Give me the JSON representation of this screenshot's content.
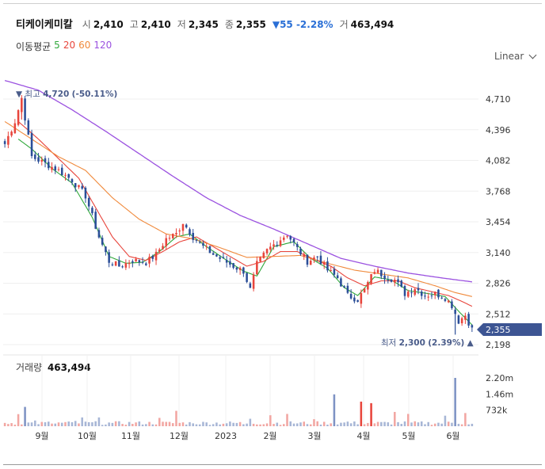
{
  "header": {
    "name": "티케이케미칼",
    "open_label": "시",
    "open": "2,410",
    "high_label": "고",
    "high": "2,410",
    "low_label": "저",
    "low": "2,345",
    "close_label": "종",
    "close": "2,355",
    "change_arrow": "▼",
    "change": "55",
    "change_pct": "-2.28%",
    "volume_label": "거",
    "volume": "463,494"
  },
  "moving_average": {
    "label": "이동평균",
    "periods": [
      {
        "label": "5",
        "color": "#2fa83a"
      },
      {
        "label": "20",
        "color": "#e8453c"
      },
      {
        "label": "60",
        "color": "#f08a3c"
      },
      {
        "label": "120",
        "color": "#9b52e0"
      }
    ]
  },
  "scale": {
    "label": "Linear"
  },
  "volume_panel": {
    "label": "거래량",
    "value": "463,494"
  },
  "annotations": {
    "max_arrow": "▼",
    "max_label": "최고",
    "max_value": "4,720",
    "max_pct": "(-50.11%)",
    "min_arrow": "▲",
    "min_label": "최저",
    "min_value": "2,300",
    "min_pct": "(2.39%)"
  },
  "last_price_tag": "2,355",
  "chart_data": {
    "type": "candlestick",
    "y_ticks": [
      "4,710",
      "4,396",
      "4,082",
      "3,768",
      "3,454",
      "3,140",
      "2,826",
      "2,512",
      "2,198"
    ],
    "y_tick_values": [
      4710,
      4396,
      4082,
      3768,
      3454,
      3140,
      2826,
      2512,
      2198
    ],
    "x_ticks": [
      "9월",
      "10월",
      "11월",
      "12월",
      "2023",
      "2월",
      "3월",
      "4월",
      "5월",
      "6월"
    ],
    "volume_ticks": [
      "2.20m",
      "1.46m",
      "732k"
    ],
    "volume_tick_values": [
      2200000,
      1460000,
      732000
    ],
    "ylim": [
      2198,
      4710
    ],
    "volume_lim": [
      0,
      2200000
    ],
    "up_color": "#e8453c",
    "down_color": "#2b4e98",
    "close_path": [
      [
        0,
        4250
      ],
      [
        3,
        4480
      ],
      [
        5,
        4720
      ],
      [
        8,
        4120
      ],
      [
        12,
        4050
      ],
      [
        16,
        3980
      ],
      [
        20,
        3880
      ],
      [
        24,
        3720
      ],
      [
        28,
        3300
      ],
      [
        31,
        3050
      ],
      [
        34,
        3000
      ],
      [
        38,
        3060
      ],
      [
        42,
        3040
      ],
      [
        45,
        3120
      ],
      [
        48,
        3280
      ],
      [
        51,
        3330
      ],
      [
        53,
        3450
      ],
      [
        56,
        3300
      ],
      [
        59,
        3200
      ],
      [
        62,
        3120
      ],
      [
        65,
        3060
      ],
      [
        68,
        3000
      ],
      [
        71,
        2950
      ],
      [
        73,
        2760
      ],
      [
        75,
        3020
      ],
      [
        78,
        3160
      ],
      [
        81,
        3250
      ],
      [
        84,
        3330
      ],
      [
        87,
        3180
      ],
      [
        90,
        3050
      ],
      [
        93,
        3100
      ],
      [
        96,
        2960
      ],
      [
        99,
        2880
      ],
      [
        102,
        2700
      ],
      [
        105,
        2660
      ],
      [
        107,
        2760
      ],
      [
        110,
        2960
      ],
      [
        113,
        2900
      ],
      [
        116,
        2860
      ],
      [
        119,
        2720
      ],
      [
        122,
        2780
      ],
      [
        125,
        2700
      ],
      [
        128,
        2720
      ],
      [
        131,
        2680
      ],
      [
        133,
        2600
      ],
      [
        135,
        2440
      ],
      [
        137,
        2500
      ],
      [
        139,
        2355
      ]
    ],
    "ma_paths": {
      "5": [
        [
          4,
          4300
        ],
        [
          8,
          4200
        ],
        [
          14,
          4000
        ],
        [
          20,
          3850
        ],
        [
          26,
          3500
        ],
        [
          31,
          3100
        ],
        [
          36,
          3030
        ],
        [
          41,
          3040
        ],
        [
          46,
          3150
        ],
        [
          51,
          3300
        ],
        [
          55,
          3330
        ],
        [
          60,
          3200
        ],
        [
          66,
          3060
        ],
        [
          71,
          2950
        ],
        [
          75,
          2900
        ],
        [
          80,
          3200
        ],
        [
          86,
          3250
        ],
        [
          91,
          3080
        ],
        [
          96,
          2980
        ],
        [
          101,
          2780
        ],
        [
          105,
          2700
        ],
        [
          110,
          2890
        ],
        [
          115,
          2860
        ],
        [
          120,
          2750
        ],
        [
          126,
          2720
        ],
        [
          131,
          2690
        ],
        [
          135,
          2540
        ],
        [
          139,
          2400
        ]
      ],
      "20": [
        [
          4,
          4480
        ],
        [
          10,
          4300
        ],
        [
          16,
          4100
        ],
        [
          22,
          3900
        ],
        [
          27,
          3600
        ],
        [
          32,
          3300
        ],
        [
          37,
          3100
        ],
        [
          42,
          3060
        ],
        [
          47,
          3150
        ],
        [
          52,
          3250
        ],
        [
          57,
          3300
        ],
        [
          62,
          3200
        ],
        [
          67,
          3100
        ],
        [
          72,
          3000
        ],
        [
          77,
          3050
        ],
        [
          82,
          3150
        ],
        [
          87,
          3150
        ],
        [
          92,
          3070
        ],
        [
          97,
          3000
        ],
        [
          102,
          2880
        ],
        [
          107,
          2800
        ],
        [
          112,
          2850
        ],
        [
          117,
          2850
        ],
        [
          122,
          2780
        ],
        [
          127,
          2740
        ],
        [
          132,
          2700
        ],
        [
          136,
          2640
        ],
        [
          139,
          2590
        ]
      ],
      "60": [
        [
          0,
          4480
        ],
        [
          8,
          4300
        ],
        [
          16,
          4120
        ],
        [
          24,
          3980
        ],
        [
          32,
          3700
        ],
        [
          40,
          3480
        ],
        [
          48,
          3330
        ],
        [
          56,
          3280
        ],
        [
          64,
          3190
        ],
        [
          72,
          3090
        ],
        [
          80,
          3100
        ],
        [
          88,
          3110
        ],
        [
          96,
          3030
        ],
        [
          104,
          2960
        ],
        [
          112,
          2920
        ],
        [
          120,
          2880
        ],
        [
          128,
          2800
        ],
        [
          134,
          2730
        ],
        [
          139,
          2690
        ]
      ],
      "120": [
        [
          0,
          4900
        ],
        [
          10,
          4800
        ],
        [
          20,
          4600
        ],
        [
          30,
          4380
        ],
        [
          40,
          4150
        ],
        [
          50,
          3920
        ],
        [
          60,
          3700
        ],
        [
          70,
          3520
        ],
        [
          80,
          3380
        ],
        [
          90,
          3230
        ],
        [
          100,
          3080
        ],
        [
          110,
          3000
        ],
        [
          120,
          2930
        ],
        [
          130,
          2880
        ],
        [
          139,
          2840
        ]
      ]
    },
    "volume_bars": [
      {
        "i": 4,
        "v": 550000
      },
      {
        "i": 6,
        "v": 880000
      },
      {
        "i": 9,
        "v": 260000
      },
      {
        "i": 14,
        "v": 120000
      },
      {
        "i": 21,
        "v": 240000
      },
      {
        "i": 23,
        "v": 400000
      },
      {
        "i": 28,
        "v": 400000
      },
      {
        "i": 32,
        "v": 150000
      },
      {
        "i": 46,
        "v": 380000
      },
      {
        "i": 51,
        "v": 700000
      },
      {
        "i": 56,
        "v": 130000
      },
      {
        "i": 71,
        "v": 90000
      },
      {
        "i": 73,
        "v": 340000
      },
      {
        "i": 79,
        "v": 500000
      },
      {
        "i": 84,
        "v": 560000
      },
      {
        "i": 92,
        "v": 320000
      },
      {
        "i": 98,
        "v": 1450000
      },
      {
        "i": 102,
        "v": 210000
      },
      {
        "i": 106,
        "v": 1120000
      },
      {
        "i": 109,
        "v": 1050000
      },
      {
        "i": 116,
        "v": 650000
      },
      {
        "i": 120,
        "v": 560000
      },
      {
        "i": 131,
        "v": 480000
      },
      {
        "i": 134,
        "v": 2200000
      },
      {
        "i": 137,
        "v": 600000
      }
    ]
  }
}
